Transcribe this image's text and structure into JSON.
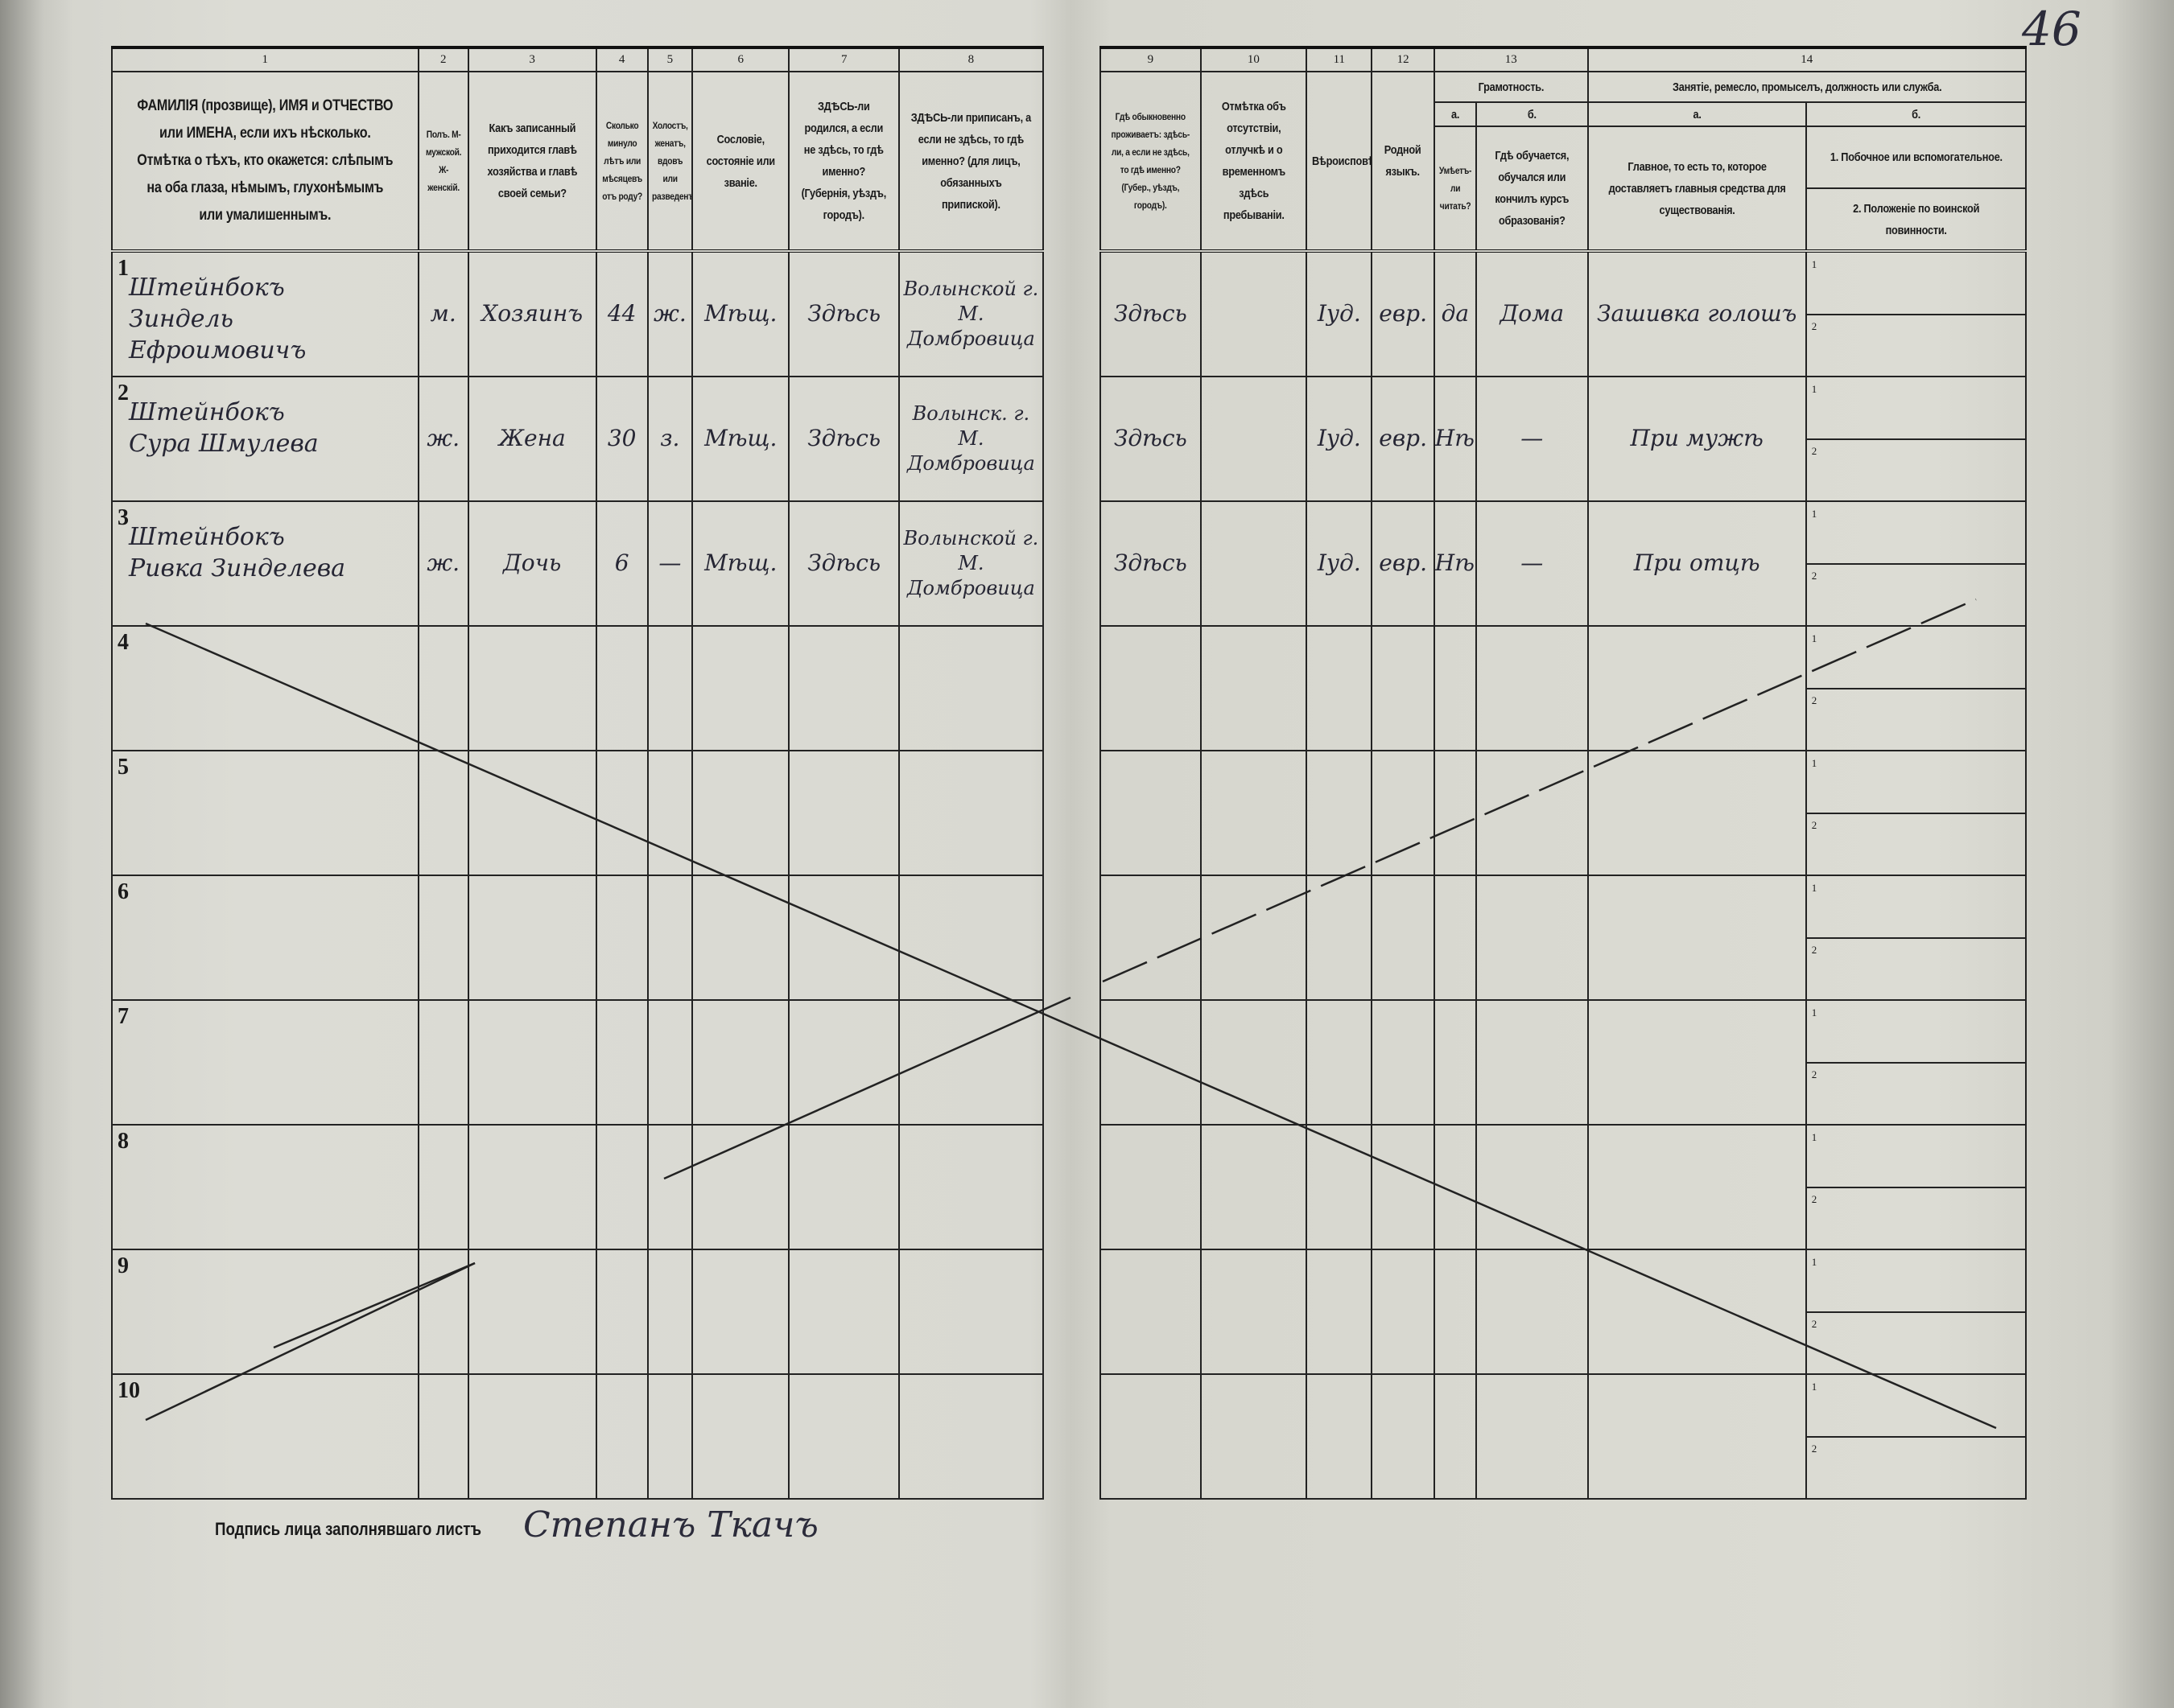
{
  "page_number": "46",
  "header": {
    "numbers": [
      "1",
      "2",
      "3",
      "4",
      "5",
      "6",
      "7",
      "8",
      "9",
      "10",
      "11",
      "12",
      "13",
      "14"
    ],
    "col1": "ФАМИЛІЯ (прозвище), ИМЯ и ОТЧЕСТВО или ИМЕНА, если ихъ нѣсколько. Отмѣтка о тѣхъ, кто окажется: слѣпымъ на оба глаза, нѣмымъ, глухонѣмымъ или умалишеннымъ.",
    "col2": "Полъ. М-мужской. Ж-женскій.",
    "col3": "Какъ записанный приходится главѣ хозяйства и главѣ своей семьи?",
    "col4": "Сколько минуло лѣтъ или мѣсяцевъ отъ роду?",
    "col5": "Холостъ, женатъ, вдовъ или разведенъ.",
    "col6": "Сословіе, состояніе или званіе.",
    "col7": "ЗДѢСЬ-ли родился, а если не здѣсь, то гдѣ именно? (Губернія, уѣздъ, городъ).",
    "col8": "ЗДѢСЬ-ли приписанъ, а если не здѣсь, то гдѣ именно? (для лицъ, обязанныхъ припиской).",
    "col9": "Гдѣ обыкновенно проживаетъ: здѣсь-ли, а если не здѣсь, то гдѣ именно? (Губер., уѣздъ, городъ).",
    "col10": "Отмѣтка объ отсутствіи, отлучкѣ и о временномъ здѣсь пребываніи.",
    "col11": "Вѣроисповѣданіе.",
    "col12": "Родной языкъ.",
    "col13": "Грамотность.",
    "col13a_letter": "а.",
    "col13a": "Умѣетъ-ли читать?",
    "col13b_letter": "б.",
    "col13b": "Гдѣ обучается, обучался или кончилъ курсъ образованія?",
    "col14": "Занятіе, ремесло, промыселъ, должность или служба.",
    "col14a_letter": "а.",
    "col14a": "Главное, то есть то, которое доставляетъ главныя средства для существованія.",
    "col14b_letter": "б.",
    "col14b_1": "1. Побочное или вспомогательное.",
    "col14b_2": "2. Положеніе по воинской повинности."
  },
  "rows": [
    {
      "no": "1",
      "surname": "Штейнбокъ",
      "name": "Зиндель Ефроимовичъ",
      "sex": "м.",
      "relation": "Хозяинъ",
      "age": "44",
      "marital": "ж.",
      "estate": "Мѣщ.",
      "birthplace": "Здѣсь",
      "registered": "Волынской г. М. Домбровица",
      "residence": "Здѣсь",
      "absence": "",
      "religion": "Іуд.",
      "language": "евр.",
      "literate": "да",
      "education": "Дома",
      "occupation": "Зашивка голошъ",
      "side_occupation": "",
      "military": ""
    },
    {
      "no": "2",
      "surname": "Штейнбокъ",
      "name": "Сура Шмулева",
      "sex": "ж.",
      "relation": "Жена",
      "age": "30",
      "marital": "з.",
      "estate": "Мѣщ.",
      "birthplace": "Здѣсь",
      "registered": "Волынск. г. М. Домбровица",
      "residence": "Здѣсь",
      "absence": "",
      "religion": "Іуд.",
      "language": "евр.",
      "literate": "Нѣтъ",
      "education": "—",
      "occupation": "При мужѣ",
      "side_occupation": "",
      "military": ""
    },
    {
      "no": "3",
      "surname": "Штейнбокъ",
      "name": "Ривка Зинделева",
      "sex": "ж.",
      "relation": "Дочь",
      "age": "6",
      "marital": "—",
      "estate": "Мѣщ.",
      "birthplace": "Здѣсь",
      "registered": "Волынской г. М. Домбровица",
      "residence": "Здѣсь",
      "absence": "",
      "religion": "Іуд.",
      "language": "евр.",
      "literate": "Нѣтъ",
      "education": "—",
      "occupation": "При отцѣ",
      "side_occupation": "",
      "military": ""
    },
    {
      "no": "4"
    },
    {
      "no": "5"
    },
    {
      "no": "6"
    },
    {
      "no": "7"
    },
    {
      "no": "8"
    },
    {
      "no": "9"
    },
    {
      "no": "10"
    }
  ],
  "sub_numbers": [
    "1",
    "2"
  ],
  "footer": {
    "signature_label": "Подпись лица заполнявшаго листъ",
    "signature": "Степанъ Ткачъ"
  }
}
